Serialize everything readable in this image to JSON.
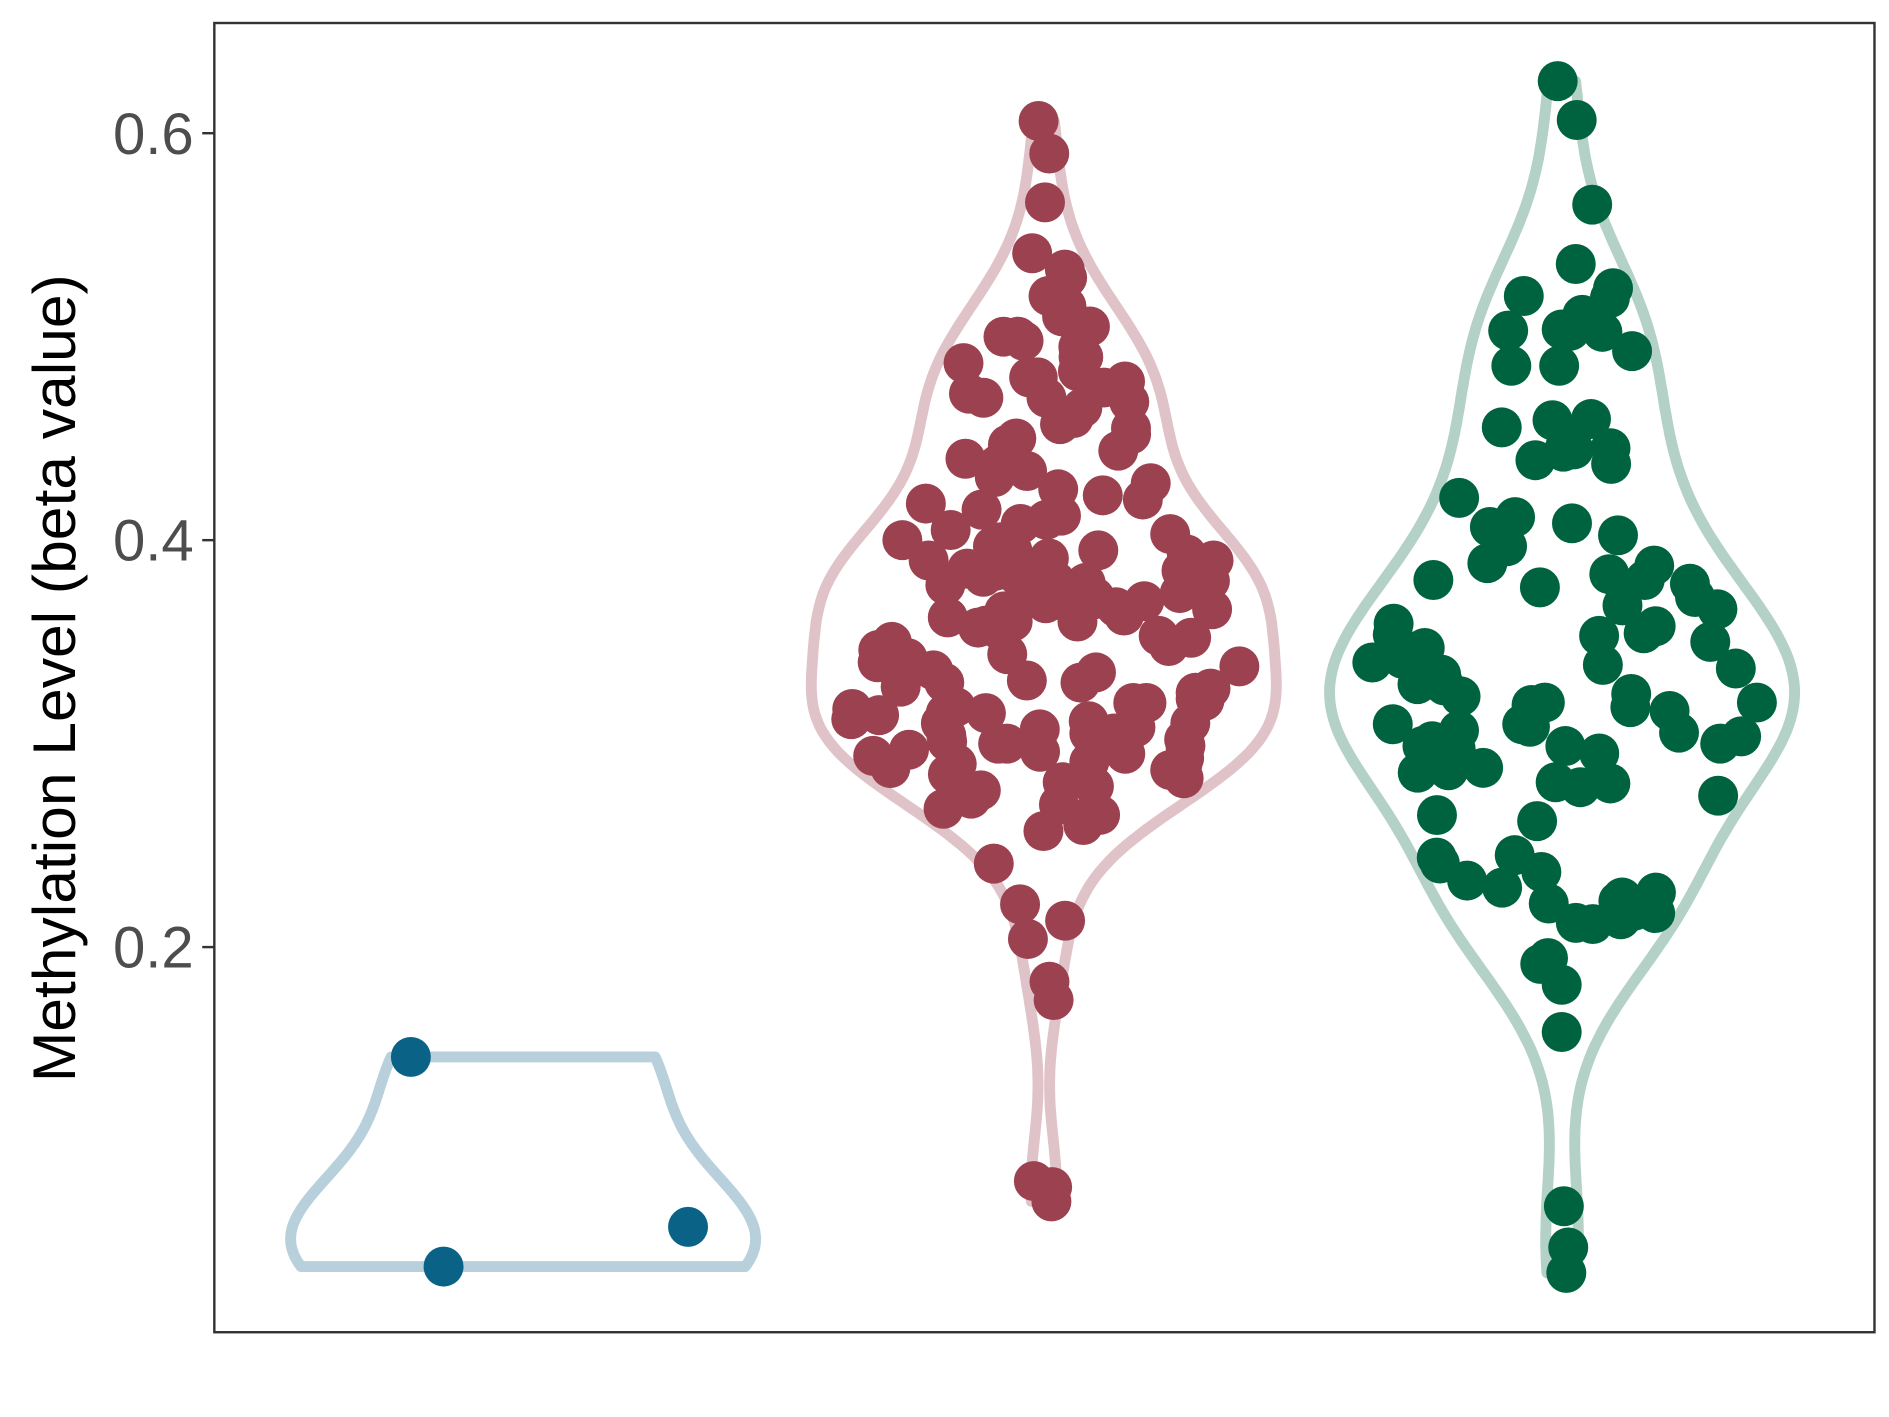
{
  "chart_data": {
    "type": "violin",
    "title": "",
    "xlabel": "",
    "ylabel": "Methylation Level (beta value)",
    "ylim": [
      0.0195,
      0.6637
    ],
    "yticks": [
      0.2,
      0.4,
      0.6
    ],
    "ytick_labels": [
      "0.2",
      "0.4",
      "0.6"
    ],
    "grid": false,
    "legend": "none",
    "series": [
      {
        "color": "#0a6387",
        "violin_color": "#b8d0dc",
        "values": [
          0.146,
          0.0625,
          0.043
        ]
      },
      {
        "color": "#9b4150",
        "violin_color": "#e0c3c8",
        "values": [
          0.606,
          0.59,
          0.566,
          0.541,
          0.533,
          0.529,
          0.52,
          0.515,
          0.51,
          0.505,
          0.5,
          0.498,
          0.495,
          0.49,
          0.487,
          0.483,
          0.48,
          0.478,
          0.475,
          0.472,
          0.47,
          0.468,
          0.465,
          0.46,
          0.457,
          0.455,
          0.452,
          0.45,
          0.447,
          0.444,
          0.442,
          0.44,
          0.437,
          0.434,
          0.431,
          0.428,
          0.425,
          0.422,
          0.42,
          0.418,
          0.415,
          0.412,
          0.41,
          0.408,
          0.405,
          0.403,
          0.4,
          0.399,
          0.397,
          0.395,
          0.393,
          0.391,
          0.39,
          0.388,
          0.386,
          0.385,
          0.383,
          0.382,
          0.38,
          0.379,
          0.378,
          0.376,
          0.375,
          0.374,
          0.372,
          0.371,
          0.37,
          0.369,
          0.367,
          0.366,
          0.365,
          0.363,
          0.362,
          0.36,
          0.358,
          0.357,
          0.355,
          0.353,
          0.352,
          0.35,
          0.348,
          0.346,
          0.344,
          0.342,
          0.34,
          0.338,
          0.336,
          0.335,
          0.333,
          0.331,
          0.33,
          0.328,
          0.327,
          0.325,
          0.324,
          0.322,
          0.321,
          0.32,
          0.318,
          0.317,
          0.315,
          0.314,
          0.312,
          0.311,
          0.31,
          0.308,
          0.307,
          0.305,
          0.304,
          0.302,
          0.301,
          0.3,
          0.299,
          0.297,
          0.296,
          0.294,
          0.293,
          0.291,
          0.29,
          0.288,
          0.287,
          0.285,
          0.283,
          0.281,
          0.279,
          0.277,
          0.275,
          0.273,
          0.27,
          0.268,
          0.265,
          0.263,
          0.26,
          0.257,
          0.241,
          0.221,
          0.213,
          0.204,
          0.183,
          0.174,
          0.085,
          0.082,
          0.075,
          0.39,
          0.38,
          0.37,
          0.36,
          0.33,
          0.32,
          0.31,
          0.3,
          0.29,
          0.395,
          0.385,
          0.375,
          0.315,
          0.305,
          0.295,
          0.5,
          0.49,
          0.48,
          0.47
        ]
      },
      {
        "color": "#006340",
        "violin_color": "#b3d1c6",
        "values": [
          0.6256,
          0.6065,
          0.5649,
          0.5357,
          0.519,
          0.5238,
          0.52,
          0.5107,
          0.503,
          0.5036,
          0.503,
          0.5024,
          0.4929,
          0.4857,
          0.4857,
          0.4589,
          0.4554,
          0.4595,
          0.4476,
          0.4446,
          0.4435,
          0.4452,
          0.4393,
          0.4375,
          0.4208,
          0.4113,
          0.4083,
          0.4065,
          0.4024,
          0.397,
          0.3887,
          0.3833,
          0.3768,
          0.3804,
          0.3804,
          0.3875,
          0.3786,
          0.372,
          0.3679,
          0.3661,
          0.3589,
          0.3577,
          0.353,
          0.3542,
          0.35,
          0.3536,
          0.347,
          0.3458,
          0.3435,
          0.3417,
          0.3399,
          0.3387,
          0.3369,
          0.3339,
          0.3292,
          0.3286,
          0.3244,
          0.3232,
          0.3202,
          0.3202,
          0.319,
          0.3179,
          0.3161,
          0.3095,
          0.3083,
          0.3095,
          0.3065,
          0.3054,
          0.3036,
          0.3012,
          0.3,
          0.2988,
          0.2988,
          0.2976,
          0.2952,
          0.2869,
          0.2857,
          0.2881,
          0.2804,
          0.2786,
          0.281,
          0.2744,
          0.2649,
          0.2619,
          0.2452,
          0.244,
          0.2411,
          0.2369,
          0.2327,
          0.2292,
          0.2268,
          0.2244,
          0.2226,
          0.2214,
          0.2179,
          0.2167,
          0.2137,
          0.2113,
          0.2119,
          0.1917,
          0.1946,
          0.1815,
          0.1583,
          0.0726,
          0.0524,
          0.0399
        ]
      }
    ]
  }
}
